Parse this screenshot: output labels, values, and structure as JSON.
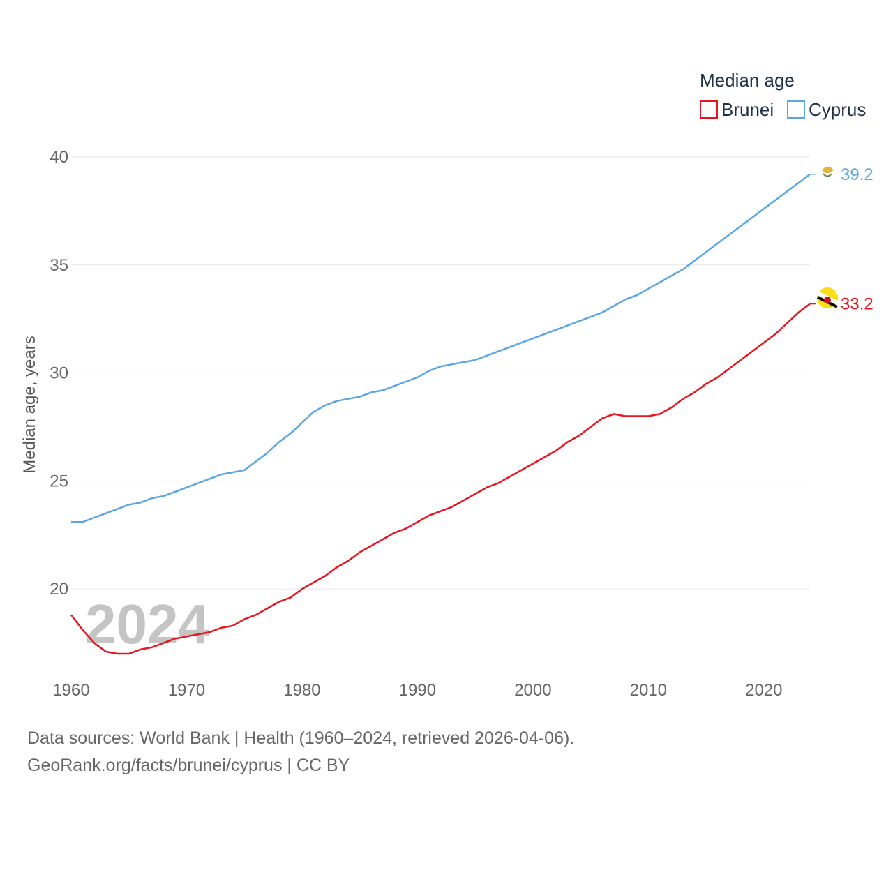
{
  "chart_data": {
    "type": "line",
    "title": "",
    "xlabel": "",
    "ylabel": "Median age, years",
    "xlim": [
      1960,
      2024
    ],
    "ylim": [
      16,
      40
    ],
    "yticks": [
      20,
      25,
      30,
      35,
      40
    ],
    "xticks": [
      1960,
      1970,
      1980,
      1990,
      2000,
      2010,
      2020
    ],
    "grid": true,
    "legend_title": "Median age",
    "legend_position": "top-right",
    "year_label": "2024",
    "x": [
      1960,
      1961,
      1962,
      1963,
      1964,
      1965,
      1966,
      1967,
      1968,
      1969,
      1970,
      1971,
      1972,
      1973,
      1974,
      1975,
      1976,
      1977,
      1978,
      1979,
      1980,
      1981,
      1982,
      1983,
      1984,
      1985,
      1986,
      1987,
      1988,
      1989,
      1990,
      1991,
      1992,
      1993,
      1994,
      1995,
      1996,
      1997,
      1998,
      1999,
      2000,
      2001,
      2002,
      2003,
      2004,
      2005,
      2006,
      2007,
      2008,
      2009,
      2010,
      2011,
      2012,
      2013,
      2014,
      2015,
      2016,
      2017,
      2018,
      2019,
      2020,
      2021,
      2022,
      2023,
      2024
    ],
    "series": [
      {
        "name": "Brunei",
        "color": "#e8141e",
        "end_value": "33.2",
        "values": [
          18.8,
          18.1,
          17.5,
          17.1,
          17.0,
          17.0,
          17.2,
          17.3,
          17.5,
          17.7,
          17.8,
          17.9,
          18.0,
          18.2,
          18.3,
          18.6,
          18.8,
          19.1,
          19.4,
          19.6,
          20.0,
          20.3,
          20.6,
          21.0,
          21.3,
          21.7,
          22.0,
          22.3,
          22.6,
          22.8,
          23.1,
          23.4,
          23.6,
          23.8,
          24.1,
          24.4,
          24.7,
          24.9,
          25.2,
          25.5,
          25.8,
          26.1,
          26.4,
          26.8,
          27.1,
          27.5,
          27.9,
          28.1,
          28.0,
          28.0,
          28.0,
          28.1,
          28.4,
          28.8,
          29.1,
          29.5,
          29.8,
          30.2,
          30.6,
          31.0,
          31.4,
          31.8,
          32.3,
          32.8,
          33.2
        ]
      },
      {
        "name": "Cyprus",
        "color": "#5aa5e6",
        "end_value": "39.2",
        "values": [
          23.1,
          23.1,
          23.3,
          23.5,
          23.7,
          23.9,
          24.0,
          24.2,
          24.3,
          24.5,
          24.7,
          24.9,
          25.1,
          25.3,
          25.4,
          25.5,
          25.9,
          26.3,
          26.8,
          27.2,
          27.7,
          28.2,
          28.5,
          28.7,
          28.8,
          28.9,
          29.1,
          29.2,
          29.4,
          29.6,
          29.8,
          30.1,
          30.3,
          30.4,
          30.5,
          30.6,
          30.8,
          31.0,
          31.2,
          31.4,
          31.6,
          31.8,
          32.0,
          32.2,
          32.4,
          32.6,
          32.8,
          33.1,
          33.4,
          33.6,
          33.9,
          34.2,
          34.5,
          34.8,
          35.2,
          35.6,
          36.0,
          36.4,
          36.8,
          37.2,
          37.6,
          38.0,
          38.4,
          38.8,
          39.2
        ]
      }
    ]
  },
  "source_line1": "Data sources: World Bank | Health (1960–2024, retrieved 2026-04-06).",
  "source_line2": "GeoRank.org/facts/brunei/cyprus | CC BY"
}
